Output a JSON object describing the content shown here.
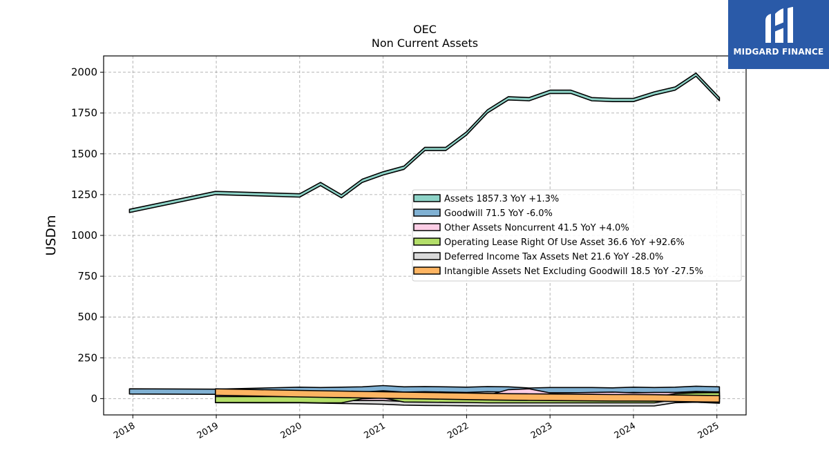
{
  "brand": {
    "name": "MIDGARD FINANCE",
    "bg_color": "#2a5aa8"
  },
  "chart_data": {
    "type": "area",
    "title": "OEC",
    "subtitle": "Non Current  Assets",
    "ylabel": "USDm",
    "xlabel": "",
    "ylim": [
      -100,
      2100
    ],
    "xlim": [
      2017.65,
      2025.35
    ],
    "y_ticks": [
      0,
      250,
      500,
      750,
      1000,
      1250,
      1500,
      1750,
      2000
    ],
    "x_ticks": [
      2018,
      2019,
      2020,
      2021,
      2022,
      2023,
      2024,
      2025
    ],
    "grid": true,
    "legend_position": "center-right",
    "series": [
      {
        "name": "Assets",
        "legend": "Assets  1857.3 YoY +1.3%",
        "color": "#8dd3c7",
        "x": [
          2017.96,
          2018.99,
          2020.0,
          2020.25,
          2020.5,
          2020.75,
          2021.0,
          2021.25,
          2021.5,
          2021.75,
          2022.0,
          2022.25,
          2022.5,
          2022.75,
          2023.0,
          2023.25,
          2023.5,
          2023.75,
          2024.0,
          2024.25,
          2024.5,
          2024.75,
          2025.03
        ],
        "values": [
          1160,
          1270,
          1255,
          1325,
          1250,
          1345,
          1390,
          1425,
          1540,
          1540,
          1635,
          1770,
          1850,
          1845,
          1890,
          1890,
          1845,
          1840,
          1840,
          1880,
          1910,
          1995,
          1845
        ]
      },
      {
        "name": "Goodwill",
        "legend": "Goodwill  71.5 YoY -6.0%",
        "color": "#80b1d3",
        "x": [
          2017.96,
          2018.99,
          2020.0,
          2020.25,
          2020.5,
          2020.75,
          2021.0,
          2021.25,
          2021.5,
          2021.75,
          2022.0,
          2022.25,
          2022.5,
          2022.75,
          2023.0,
          2023.25,
          2023.5,
          2023.75,
          2024.0,
          2024.25,
          2024.5,
          2024.75,
          2025.03
        ],
        "values": [
          60,
          58,
          70,
          68,
          70,
          72,
          80,
          72,
          74,
          72,
          70,
          74,
          72,
          65,
          68,
          68,
          68,
          66,
          70,
          68,
          70,
          76,
          72
        ]
      },
      {
        "name": "Other Assets Noncurrent",
        "legend": "Other Assets Noncurrent  41.5 YoY +4.0%",
        "color": "#fccde5",
        "x": [
          2018.99,
          2020.0,
          2020.25,
          2020.5,
          2020.75,
          2021.0,
          2021.25,
          2021.5,
          2021.75,
          2022.0,
          2022.25,
          2022.5,
          2022.75,
          2023.0,
          2023.25,
          2023.5,
          2023.75,
          2024.0,
          2024.25,
          2024.5,
          2024.75,
          2025.03
        ],
        "values": [
          30,
          28,
          30,
          30,
          30,
          30,
          25,
          22,
          22,
          20,
          20,
          55,
          60,
          35,
          35,
          38,
          40,
          35,
          38,
          38,
          40,
          41.5
        ]
      },
      {
        "name": "Operating Lease Right Of Use Asset",
        "legend": "Operating Lease Right Of Use Asset  36.6 YoY +92.6%",
        "color": "#b3de69",
        "x": [
          2018.99,
          2020.0,
          2020.25,
          2020.5,
          2020.75,
          2021.0,
          2021.25,
          2021.5,
          2021.75,
          2022.0,
          2022.25,
          2022.5,
          2022.75,
          2023.0,
          2023.25,
          2023.5,
          2023.75,
          2024.0,
          2024.25,
          2024.5,
          2024.75,
          2025.03
        ],
        "values": [
          12,
          12,
          10,
          10,
          35,
          40,
          15,
          14,
          13,
          12,
          10,
          10,
          10,
          10,
          10,
          10,
          10,
          10,
          10,
          30,
          35,
          36.6
        ]
      },
      {
        "name": "Deferred Income Tax Assets Net",
        "legend": "Deferred Income Tax Assets Net  21.6 YoY -28.0%",
        "color": "#d9d9d9",
        "x": [
          2018.99,
          2020.0,
          2020.25,
          2020.5,
          2020.75,
          2021.0,
          2021.25,
          2021.5,
          2021.75,
          2022.0,
          2022.25,
          2022.5,
          2022.75,
          2023.0,
          2023.25,
          2023.5,
          2023.75,
          2024.0,
          2024.25,
          2024.5,
          2024.75,
          2025.03
        ],
        "values": [
          25,
          24,
          22,
          20,
          18,
          15,
          10,
          8,
          7,
          6,
          5,
          5,
          5,
          5,
          5,
          5,
          5,
          5,
          5,
          25,
          28,
          21.6
        ]
      },
      {
        "name": "Intangible Assets Net Excluding Goodwill",
        "legend": "Intangible Assets Net Excluding Goodwill  18.5 YoY -27.5%",
        "color": "#fdb462",
        "x": [
          2018.99,
          2020.0,
          2020.25,
          2020.5,
          2020.75,
          2021.0,
          2021.25,
          2021.5,
          2021.75,
          2022.0,
          2022.25,
          2022.5,
          2022.75,
          2023.0,
          2023.25,
          2023.5,
          2023.75,
          2024.0,
          2024.25,
          2024.5,
          2024.75,
          2025.03
        ],
        "values": [
          60,
          50,
          48,
          46,
          44,
          42,
          40,
          38,
          36,
          34,
          32,
          30,
          29,
          28,
          27,
          26,
          25,
          25,
          24,
          22,
          20,
          18.5
        ]
      }
    ]
  }
}
